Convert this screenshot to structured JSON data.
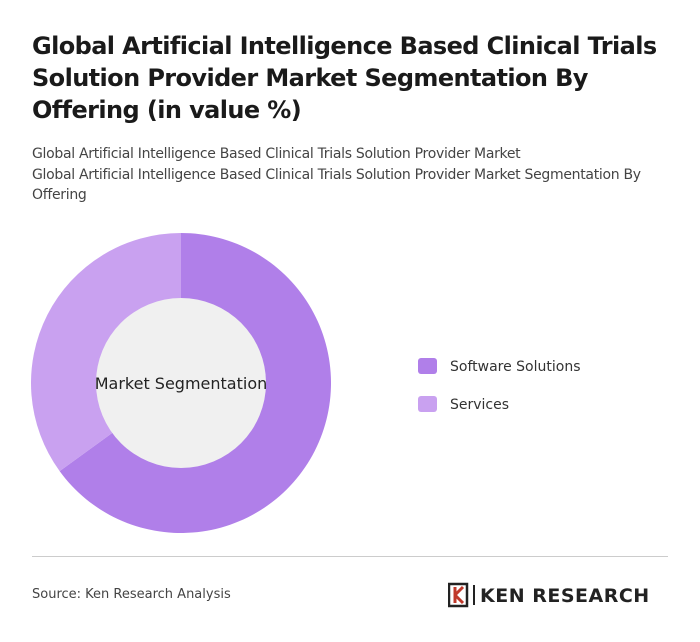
{
  "chart_data": {
    "type": "pie",
    "title": "Global Artificial Intelligence Based Clinical Trials Solution Provider Market Segmentation By Offering (in value %)",
    "subtitles": [
      "Global Artificial Intelligence Based Clinical Trials Solution Provider Market",
      "Global Artificial Intelligence Based Clinical Trials Solution Provider Market Segmentation By Offering"
    ],
    "center_label": "Market Segmentation",
    "categories": [
      "Software Solutions",
      "Services"
    ],
    "values": [
      65,
      35
    ],
    "colors": [
      "#b07fe9",
      "#c9a1f0"
    ],
    "source": "Source: Ken Research Analysis",
    "logo": "KEN RESEARCH"
  }
}
